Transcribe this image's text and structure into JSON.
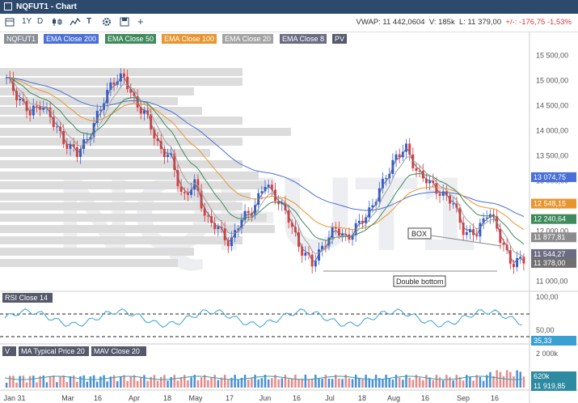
{
  "window": {
    "title": "NQFUT1 - Chart"
  },
  "toolbar": {
    "range_1y": "1Y",
    "range_d": "D",
    "text_tool": "T",
    "add": "+"
  },
  "stats": {
    "vwap": "VWAP: 11 442,0604",
    "volume": "V: 185k",
    "last": "L: 11 379,00",
    "change": "+/-: -176,75 -1,53%"
  },
  "legend": {
    "items": [
      {
        "label": "NQFUT1",
        "color": "#8a8f96"
      },
      {
        "label": "EMA Close 200",
        "color": "#4a6fd6"
      },
      {
        "label": "EMA Close 50",
        "color": "#3f8a5c"
      },
      {
        "label": "EMA Close 100",
        "color": "#e8952f"
      },
      {
        "label": "EMA Close 20",
        "color": "#a3a3a3"
      },
      {
        "label": "EMA Close 8",
        "color": "#6b6b84"
      },
      {
        "label": "PV",
        "color": "#55596b"
      }
    ]
  },
  "price_axis": {
    "ticks": [
      "15 500,00",
      "15 000,00",
      "14 500,00",
      "14 000,00",
      "13 500,00",
      "13 000,00",
      "12 500,00",
      "12 000,00",
      "11 500,00",
      "11 000,00"
    ]
  },
  "price_labels": [
    {
      "text": "13 074,75",
      "color": "#4a6fd6",
      "value": 13074.75
    },
    {
      "text": "12 548,15",
      "color": "#e8952f",
      "value": 12548.15
    },
    {
      "text": "12 240,64",
      "color": "#3f8a5c",
      "value": 12240.64
    },
    {
      "text": "11 877,81",
      "color": "#8c8c8c",
      "value": 11877.81
    },
    {
      "text": "11 544,27",
      "color": "#6b6b84",
      "value": 11544.27
    },
    {
      "text": "11 378,00",
      "color": "#707070",
      "value": 11378
    }
  ],
  "annotations": {
    "box": "BOX",
    "double_bottom": "Double bottom"
  },
  "watermark": "NQFUT1",
  "rsi": {
    "label": "RSI Close 14",
    "ticks": [
      "100,00",
      "50,00"
    ],
    "value_label": "35,33"
  },
  "volume": {
    "labels": [
      "V",
      "MA Typical Price 20",
      "MAV Close 20"
    ],
    "ticks": [
      "2 000k"
    ],
    "value_labels": [
      "620k",
      "11 919,85"
    ]
  },
  "x_axis": {
    "labels": [
      "Jan 31",
      "Mar",
      "16",
      "Apr",
      "18",
      "May",
      "17",
      "Jun",
      "16",
      "Jul",
      "18",
      "Aug",
      "16",
      "Sep",
      "16"
    ]
  },
  "chart_data": {
    "type": "candlestick",
    "title": "NQFUT1",
    "ylim": [
      10850,
      15700
    ],
    "x_months": [
      "Jan 31",
      "Mar",
      "16",
      "Apr",
      "18",
      "May",
      "17",
      "Jun",
      "16",
      "Jul",
      "18",
      "Aug",
      "16",
      "Sep",
      "16"
    ],
    "close_series_approx": [
      15000,
      14700,
      14300,
      14600,
      14100,
      13800,
      13500,
      13950,
      14400,
      15050,
      15000,
      14600,
      14200,
      13700,
      13400,
      12700,
      12900,
      12300,
      12000,
      11800,
      12200,
      12500,
      12900,
      12700,
      12200,
      11700,
      11300,
      11800,
      12000,
      11900,
      12100,
      12500,
      12900,
      13500,
      13600,
      13200,
      12900,
      12800,
      12500,
      12000,
      11900,
      12500,
      11800,
      11400,
      11378
    ],
    "series": [
      {
        "name": "EMA Close 200",
        "end": 13074.75
      },
      {
        "name": "EMA Close 100",
        "end": 12548.15
      },
      {
        "name": "EMA Close 50",
        "end": 12240.64
      },
      {
        "name": "EMA Close 20",
        "end": 11877.81
      },
      {
        "name": "EMA Close 8",
        "end": 11544.27
      }
    ],
    "rsi_last": 35.33,
    "volume_last_k": 620
  }
}
